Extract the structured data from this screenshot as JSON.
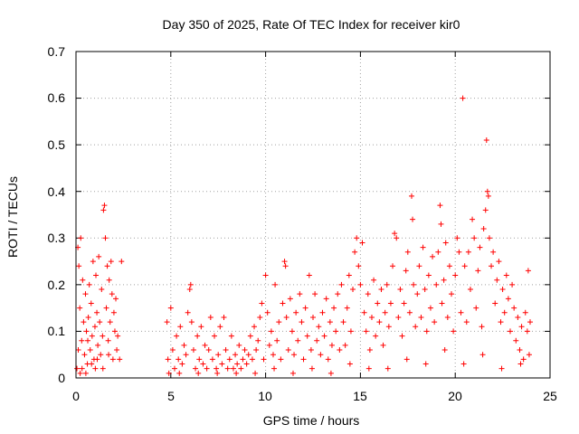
{
  "chart_data": {
    "type": "scatter",
    "title": "Day 350 of 2025, Rate Of TEC Index for receiver kir0",
    "xlabel": "GPS time / hours",
    "ylabel": "ROTI / TECUs",
    "xlim": [
      0,
      25
    ],
    "ylim": [
      0,
      0.7
    ],
    "x_ticks": [
      0,
      5,
      10,
      15,
      20,
      25
    ],
    "y_ticks": [
      0,
      0.1,
      0.2,
      0.3,
      0.4,
      0.5,
      0.6,
      0.7
    ],
    "x_tick_labels": [
      "0",
      "5",
      "10",
      "15",
      "20",
      "25"
    ],
    "y_tick_labels": [
      "0",
      "0.1",
      "0.2",
      "0.3",
      "0.4",
      "0.5",
      "0.6",
      "0.7"
    ],
    "grid": true,
    "marker": "+",
    "color": "#ff0000",
    "series": [
      {
        "name": "ROTI",
        "points": [
          [
            0.05,
            0.02
          ],
          [
            0.1,
            0.28
          ],
          [
            0.15,
            0.24
          ],
          [
            0.2,
            0.15
          ],
          [
            0.25,
            0.3
          ],
          [
            0.3,
            0.08
          ],
          [
            0.35,
            0.21
          ],
          [
            0.4,
            0.12
          ],
          [
            0.45,
            0.05
          ],
          [
            0.5,
            0.18
          ],
          [
            0.55,
            0.1
          ],
          [
            0.6,
            0.03
          ],
          [
            0.65,
            0.13
          ],
          [
            0.7,
            0.2
          ],
          [
            0.75,
            0.06
          ],
          [
            0.8,
            0.16
          ],
          [
            0.85,
            0.09
          ],
          [
            0.9,
            0.25
          ],
          [
            0.95,
            0.04
          ],
          [
            1.0,
            0.11
          ],
          [
            1.05,
            0.22
          ],
          [
            1.1,
            0.14
          ],
          [
            1.15,
            0.07
          ],
          [
            1.2,
            0.26
          ],
          [
            1.25,
            0.12
          ],
          [
            1.3,
            0.05
          ],
          [
            1.35,
            0.19
          ],
          [
            1.4,
            0.09
          ],
          [
            1.45,
            0.36
          ],
          [
            1.5,
            0.37
          ],
          [
            1.55,
            0.3
          ],
          [
            1.6,
            0.15
          ],
          [
            1.65,
            0.24
          ],
          [
            1.7,
            0.08
          ],
          [
            1.75,
            0.21
          ],
          [
            1.8,
            0.12
          ],
          [
            1.85,
            0.25
          ],
          [
            1.9,
            0.18
          ],
          [
            1.95,
            0.04
          ],
          [
            2.0,
            0.14
          ],
          [
            2.05,
            0.1
          ],
          [
            2.1,
            0.17
          ],
          [
            2.15,
            0.06
          ],
          [
            2.2,
            0.09
          ],
          [
            2.3,
            0.04
          ],
          [
            2.4,
            0.25
          ],
          [
            0.12,
            0.06
          ],
          [
            0.32,
            0.02
          ],
          [
            0.62,
            0.08
          ],
          [
            0.82,
            0.03
          ],
          [
            1.12,
            0.04
          ],
          [
            1.42,
            0.02
          ],
          [
            1.72,
            0.05
          ],
          [
            0.22,
            0.01
          ],
          [
            0.52,
            0.01
          ],
          [
            1.02,
            0.02
          ],
          [
            4.8,
            0.12
          ],
          [
            4.85,
            0.04
          ],
          [
            4.9,
            0.01
          ],
          [
            5.0,
            0.15
          ],
          [
            5.1,
            0.06
          ],
          [
            5.2,
            0.02
          ],
          [
            5.3,
            0.09
          ],
          [
            5.4,
            0.04
          ],
          [
            5.5,
            0.11
          ],
          [
            5.6,
            0.03
          ],
          [
            5.7,
            0.07
          ],
          [
            5.8,
            0.05
          ],
          [
            5.9,
            0.14
          ],
          [
            6.0,
            0.19
          ],
          [
            6.05,
            0.2
          ],
          [
            6.1,
            0.12
          ],
          [
            6.2,
            0.06
          ],
          [
            6.3,
            0.02
          ],
          [
            6.4,
            0.09
          ],
          [
            6.5,
            0.04
          ],
          [
            6.6,
            0.11
          ],
          [
            6.7,
            0.03
          ],
          [
            6.8,
            0.07
          ],
          [
            6.9,
            0.02
          ],
          [
            7.0,
            0.06
          ],
          [
            7.1,
            0.13
          ],
          [
            7.2,
            0.04
          ],
          [
            7.3,
            0.09
          ],
          [
            7.4,
            0.02
          ],
          [
            7.5,
            0.05
          ],
          [
            7.6,
            0.11
          ],
          [
            7.7,
            0.03
          ],
          [
            7.8,
            0.13
          ],
          [
            7.9,
            0.06
          ],
          [
            8.0,
            0.02
          ],
          [
            8.1,
            0.04
          ],
          [
            8.2,
            0.09
          ],
          [
            8.3,
            0.02
          ],
          [
            8.4,
            0.05
          ],
          [
            8.5,
            0.03
          ],
          [
            8.6,
            0.07
          ],
          [
            8.7,
            0.02
          ],
          [
            8.8,
            0.04
          ],
          [
            8.9,
            0.06
          ],
          [
            9.0,
            0.03
          ],
          [
            9.1,
            0.05
          ],
          [
            9.2,
            0.09
          ],
          [
            9.3,
            0.04
          ],
          [
            9.4,
            0.11
          ],
          [
            9.5,
            0.06
          ],
          [
            9.6,
            0.08
          ],
          [
            9.7,
            0.13
          ],
          [
            9.8,
            0.16
          ],
          [
            9.9,
            0.04
          ],
          [
            10.0,
            0.22
          ],
          [
            10.1,
            0.14
          ],
          [
            10.2,
            0.07
          ],
          [
            10.3,
            0.1
          ],
          [
            10.4,
            0.05
          ],
          [
            10.5,
            0.2
          ],
          [
            10.6,
            0.08
          ],
          [
            10.7,
            0.12
          ],
          [
            10.8,
            0.04
          ],
          [
            10.9,
            0.16
          ],
          [
            11.0,
            0.25
          ],
          [
            11.05,
            0.24
          ],
          [
            11.1,
            0.13
          ],
          [
            11.2,
            0.06
          ],
          [
            11.3,
            0.17
          ],
          [
            11.4,
            0.1
          ],
          [
            11.5,
            0.05
          ],
          [
            11.6,
            0.14
          ],
          [
            11.7,
            0.08
          ],
          [
            11.8,
            0.18
          ],
          [
            11.9,
            0.12
          ],
          [
            12.0,
            0.04
          ],
          [
            12.1,
            0.15
          ],
          [
            12.2,
            0.09
          ],
          [
            12.3,
            0.22
          ],
          [
            12.4,
            0.06
          ],
          [
            12.5,
            0.13
          ],
          [
            12.6,
            0.18
          ],
          [
            12.7,
            0.08
          ],
          [
            12.8,
            0.11
          ],
          [
            12.9,
            0.05
          ],
          [
            13.0,
            0.14
          ],
          [
            13.1,
            0.09
          ],
          [
            13.2,
            0.17
          ],
          [
            13.3,
            0.04
          ],
          [
            13.4,
            0.12
          ],
          [
            13.5,
            0.07
          ],
          [
            13.6,
            0.15
          ],
          [
            13.7,
            0.1
          ],
          [
            13.8,
            0.18
          ],
          [
            13.9,
            0.06
          ],
          [
            14.0,
            0.2
          ],
          [
            14.1,
            0.12
          ],
          [
            14.2,
            0.07
          ],
          [
            14.3,
            0.15
          ],
          [
            14.4,
            0.22
          ],
          [
            14.5,
            0.1
          ],
          [
            14.6,
            0.19
          ],
          [
            14.7,
            0.27
          ],
          [
            14.8,
            0.3
          ],
          [
            14.9,
            0.24
          ],
          [
            15.0,
            0.2
          ],
          [
            15.1,
            0.29
          ],
          [
            15.2,
            0.14
          ],
          [
            15.3,
            0.1
          ],
          [
            15.4,
            0.18
          ],
          [
            15.5,
            0.06
          ],
          [
            15.6,
            0.13
          ],
          [
            15.7,
            0.21
          ],
          [
            15.8,
            0.09
          ],
          [
            15.9,
            0.16
          ],
          [
            16.0,
            0.12
          ],
          [
            16.1,
            0.19
          ],
          [
            16.2,
            0.07
          ],
          [
            16.3,
            0.14
          ],
          [
            16.4,
            0.2
          ],
          [
            16.5,
            0.11
          ],
          [
            16.6,
            0.16
          ],
          [
            16.7,
            0.24
          ],
          [
            16.8,
            0.31
          ],
          [
            16.9,
            0.3
          ],
          [
            17.0,
            0.13
          ],
          [
            17.1,
            0.19
          ],
          [
            17.2,
            0.09
          ],
          [
            17.3,
            0.16
          ],
          [
            17.4,
            0.23
          ],
          [
            17.5,
            0.27
          ],
          [
            17.6,
            0.14
          ],
          [
            17.7,
            0.39
          ],
          [
            17.75,
            0.34
          ],
          [
            17.8,
            0.2
          ],
          [
            17.9,
            0.11
          ],
          [
            18.0,
            0.18
          ],
          [
            18.1,
            0.24
          ],
          [
            18.2,
            0.13
          ],
          [
            18.3,
            0.28
          ],
          [
            18.4,
            0.19
          ],
          [
            18.5,
            0.1
          ],
          [
            18.6,
            0.22
          ],
          [
            18.7,
            0.15
          ],
          [
            18.8,
            0.26
          ],
          [
            18.9,
            0.12
          ],
          [
            19.0,
            0.2
          ],
          [
            19.1,
            0.27
          ],
          [
            19.2,
            0.37
          ],
          [
            19.25,
            0.33
          ],
          [
            19.3,
            0.16
          ],
          [
            19.4,
            0.21
          ],
          [
            19.5,
            0.29
          ],
          [
            19.6,
            0.13
          ],
          [
            19.7,
            0.24
          ],
          [
            19.8,
            0.18
          ],
          [
            19.9,
            0.1
          ],
          [
            20.0,
            0.22
          ],
          [
            20.1,
            0.3
          ],
          [
            20.2,
            0.27
          ],
          [
            20.3,
            0.14
          ],
          [
            20.4,
            0.6
          ],
          [
            20.5,
            0.24
          ],
          [
            20.6,
            0.12
          ],
          [
            20.7,
            0.27
          ],
          [
            20.8,
            0.19
          ],
          [
            20.9,
            0.34
          ],
          [
            21.0,
            0.3
          ],
          [
            21.1,
            0.15
          ],
          [
            21.2,
            0.23
          ],
          [
            21.3,
            0.28
          ],
          [
            21.4,
            0.11
          ],
          [
            21.5,
            0.32
          ],
          [
            21.6,
            0.36
          ],
          [
            21.65,
            0.51
          ],
          [
            21.7,
            0.4
          ],
          [
            21.75,
            0.39
          ],
          [
            21.8,
            0.3
          ],
          [
            21.9,
            0.24
          ],
          [
            22.0,
            0.27
          ],
          [
            22.1,
            0.16
          ],
          [
            22.2,
            0.21
          ],
          [
            22.3,
            0.25
          ],
          [
            22.4,
            0.12
          ],
          [
            22.5,
            0.19
          ],
          [
            22.6,
            0.14
          ],
          [
            22.7,
            0.22
          ],
          [
            22.8,
            0.17
          ],
          [
            22.9,
            0.1
          ],
          [
            23.0,
            0.2
          ],
          [
            23.1,
            0.15
          ],
          [
            23.2,
            0.08
          ],
          [
            23.3,
            0.13
          ],
          [
            23.4,
            0.06
          ],
          [
            23.5,
            0.11
          ],
          [
            23.6,
            0.04
          ],
          [
            23.7,
            0.14
          ],
          [
            23.8,
            0.1
          ],
          [
            23.85,
            0.23
          ],
          [
            23.9,
            0.05
          ],
          [
            23.95,
            0.12
          ],
          [
            16.45,
            0.02
          ],
          [
            17.45,
            0.04
          ],
          [
            18.45,
            0.03
          ],
          [
            19.45,
            0.06
          ],
          [
            20.45,
            0.03
          ],
          [
            21.45,
            0.05
          ],
          [
            22.45,
            0.02
          ],
          [
            23.45,
            0.03
          ],
          [
            12.45,
            0.02
          ],
          [
            13.45,
            0.01
          ],
          [
            14.45,
            0.03
          ],
          [
            15.45,
            0.02
          ],
          [
            11.45,
            0.01
          ],
          [
            10.45,
            0.02
          ],
          [
            9.45,
            0.01
          ],
          [
            8.45,
            0.01
          ],
          [
            7.45,
            0.01
          ],
          [
            6.45,
            0.01
          ],
          [
            5.45,
            0.01
          ]
        ]
      }
    ]
  }
}
